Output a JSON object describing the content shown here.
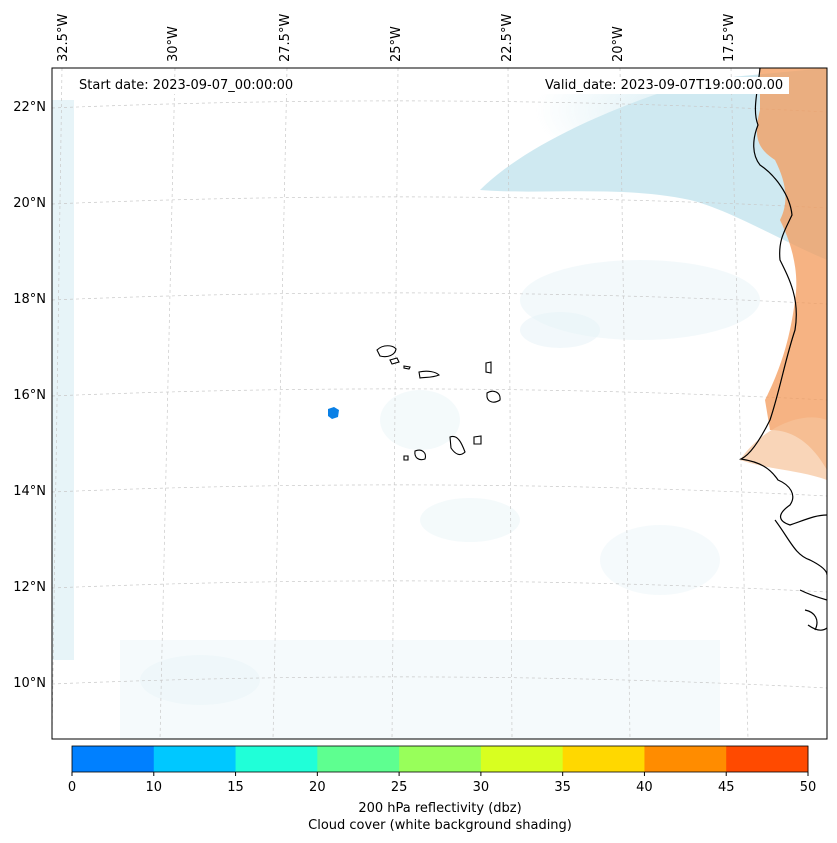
{
  "header": {
    "start_date": "Start date: 2023-09-07_00:00:00",
    "valid_date": "Valid_date: 2023-09-07T19:00:00.00"
  },
  "map": {
    "lon_labels": [
      "32.5°W",
      "30°W",
      "27.5°W",
      "25°W",
      "22.5°W",
      "20°W",
      "17.5°W"
    ],
    "lat_labels": [
      "22°N",
      "20°N",
      "18°N",
      "16°N",
      "14°N",
      "12°N",
      "10°N"
    ],
    "ocean_color": "#ffffff",
    "cloud_color": "#a8d8e6",
    "land_high_color": "#f39a5a",
    "reflectivity_cell_color": "#0a80e6"
  },
  "colorbar": {
    "label_line1": "200 hPa reflectivity (dbz)",
    "label_line2": "Cloud cover (white background shading)",
    "ticks": [
      "0",
      "10",
      "15",
      "20",
      "25",
      "30",
      "35",
      "40",
      "45",
      "50"
    ],
    "colors": [
      "#0080ff",
      "#00c8ff",
      "#20ffd8",
      "#5eff90",
      "#98ff5a",
      "#d8ff20",
      "#ffd800",
      "#ff8c00",
      "#ff4a00"
    ]
  }
}
